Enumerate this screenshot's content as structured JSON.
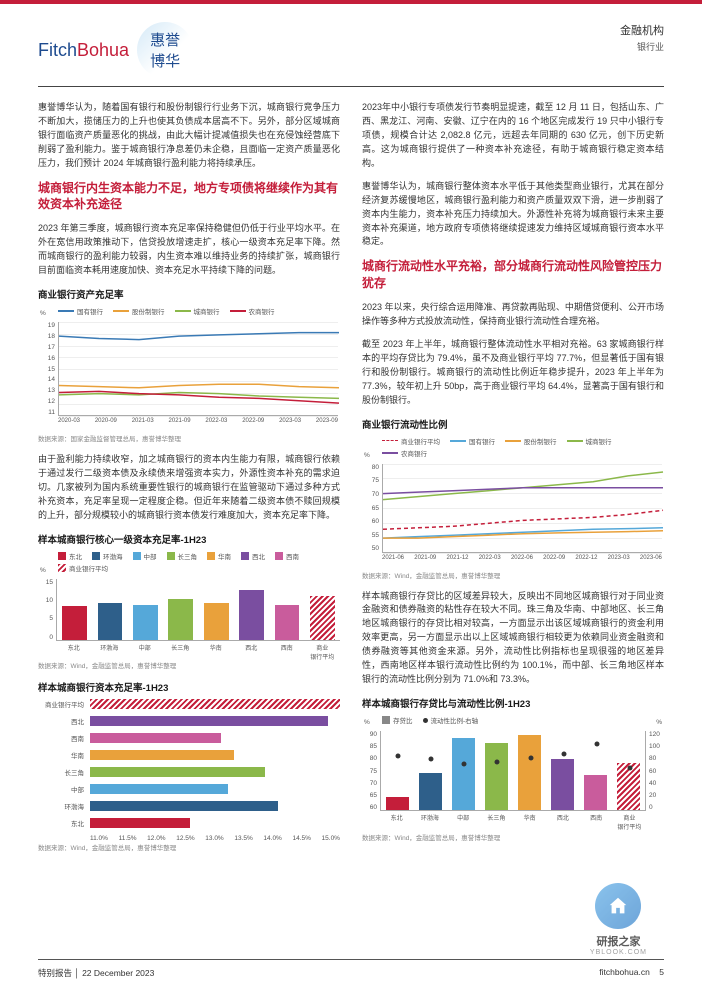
{
  "header": {
    "fitch_f": "Fitch",
    "fitch_b": "Bohua",
    "huiyu_top": "惠誉",
    "huiyu_bot": "博华",
    "right_top": "金融机构",
    "right_sub": "银行业"
  },
  "left": {
    "p1": "惠誉博华认为，随着国有银行和股份制银行行业务下沉，城商银行竞争压力不断加大，揽储压力的上升也使其负债成本居高不下。另外，部分区域城商银行面临资产质量恶化的挑战，由此大幅计提减值损失也在充侵蚀经营底下削弱了盈利能力。鉴于城商银行净息差仍未企稳，且面临一定资产质量恶化压力，我们预计 2024 年城商银行盈利能力将持续承压。",
    "h2_1": "城商银行内生资本能力不足，地方专项债将继续作为其有效资本补充途径",
    "p2": "2023 年第三季度，城商银行资本充足率保持稳健但仍低于行业平均水平。在外在宽信用政策推动下，信贷投放增速走扩，核心一级资本充足率下降。然而城商银行的盈利能力较弱，内生资本难以维持业务的持续扩张，城商银行目前面临资本耗用速度加快、资本充足水平持续下降的问题。",
    "chart1": {
      "title": "商业银行资产充足率",
      "ylabel": "%",
      "ymin": 11,
      "ymax": 19,
      "ystep": 1,
      "x_ticks": [
        "2020-03",
        "2020-09",
        "2021-03",
        "2021-09",
        "2022-03",
        "2022-09",
        "2023-03",
        "2023-09"
      ],
      "series": [
        {
          "name": "国有银行",
          "color": "#3a7ab5",
          "dash": false,
          "y": [
            17.8,
            17.6,
            17.5,
            17.8,
            17.9,
            18.0,
            18.1,
            18.1
          ]
        },
        {
          "name": "股份制银行",
          "color": "#e9a13b",
          "dash": false,
          "y": [
            13.6,
            13.5,
            13.4,
            13.6,
            13.7,
            13.7,
            13.5,
            13.4
          ]
        },
        {
          "name": "城商银行",
          "color": "#8bb84a",
          "dash": false,
          "y": [
            12.8,
            12.9,
            12.8,
            13.0,
            12.9,
            12.7,
            12.6,
            12.5
          ]
        },
        {
          "name": "农商银行",
          "color": "#c41e3a",
          "dash": false,
          "y": [
            13.0,
            13.1,
            12.9,
            12.8,
            12.6,
            12.5,
            12.3,
            12.1
          ]
        }
      ],
      "source": "数据来源：国家金融监督管理总局，惠誉博华整理"
    },
    "p3": "由于盈利能力持续收窄，加之城商银行的资本内生能力有限，城商银行依赖于通过发行二级资本债及永续债来增强资本实力，外源性资本补充的需求迫切。几家被列为国内系统重要性银行的城商银行在监管驱动下通过多种方式补充资本，充足率呈现一定程度企稳。但近年来随着二级资本债不赎回规模的上升，部分规模较小的城商银行资本债发行难度加大，资本充足率下降。",
    "chart2": {
      "title": "样本城商银行核心一级资本充足率-1H23",
      "ylabel": "%",
      "ymin": 0,
      "ymax": 15,
      "ystep": 5,
      "categories": [
        "东北",
        "环渤海",
        "中部",
        "长三角",
        "华南",
        "西北",
        "西南",
        "商业银行平均"
      ],
      "colors": [
        "#c41e3a",
        "#2e5f8a",
        "#55a8d9",
        "#8bb84a",
        "#e9a13b",
        "#7a4ea0",
        "#c95c9c",
        "hatched"
      ],
      "values": [
        8.2,
        9.0,
        8.5,
        9.8,
        8.8,
        12.0,
        8.5,
        10.5
      ],
      "legend": [
        "东北",
        "环渤海",
        "中部",
        "长三角",
        "华南",
        "西北",
        "西南",
        "商业银行平均"
      ],
      "source": "数据来源：Wind，金融监管总局，惠誉博华整理"
    },
    "chart3": {
      "title": "样本城商银行资本充足率-1H23",
      "xmin": 11.0,
      "xmax": 15.0,
      "xstep": 0.5,
      "categories_rev": [
        "商业银行平均",
        "西北",
        "西南",
        "华南",
        "长三角",
        "中部",
        "环渤海",
        "东北"
      ],
      "colors_rev": [
        "hatched",
        "#7a4ea0",
        "#c95c9c",
        "#e9a13b",
        "#8bb84a",
        "#55a8d9",
        "#2e5f8a",
        "#c41e3a"
      ],
      "values_rev": [
        15.0,
        14.8,
        13.1,
        13.3,
        13.8,
        13.2,
        14.0,
        12.6
      ],
      "source": "数据来源：Wind，金融监管总局，惠誉博华整理"
    }
  },
  "right": {
    "p1": "2023年中小银行专项债发行节奏明显提速，截至 12 月 11 日，包括山东、广西、黑龙江、河南、安徽、辽宁在内的 16 个地区完成发行 19 只中小银行专项债，规模合计达 2,082.8 亿元，远超去年同期的 630 亿元，创下历史新高。这为城商银行提供了一种资本补充途径，有助于城商银行稳定资本结构。",
    "p2": "惠誉博华认为，城商银行整体资本水平低于其他类型商业银行，尤其在部分经济复苏缓慢地区，城商银行盈利能力和资产质量双双下滑，进一步削弱了资本内生能力，资本补充压力持续加大。外源性补充将为城商银行未来主要资本补充渠道，地方政府专项债将继续提速发力维持区域城商银行资本水平稳定。",
    "h2_1": "城商行流动性水平充裕，部分城商行流动性风险管控压力犹存",
    "p3": "2023 年以来，央行综合运用降准、再贷款再贴现、中期借贷便利、公开市场操作等多种方式投放流动性，保持商业银行流动性合理充裕。",
    "p4": "截至 2023 年上半年，城商银行整体流动性水平相对充裕。63 家城商银行样本的平均存贷比为 79.4%，虽不及商业银行平均 77.7%，但显著低于国有银行和股份制银行。城商银行的流动性比例近年稳步提升，2023 年上半年为 77.3%，较年初上升 50bp，高于商业银行平均 64.4%，显著高于国有银行和股份制银行。",
    "chart4": {
      "title": "商业银行流动性比例",
      "ylabel": "%",
      "ymin": 50,
      "ymax": 80,
      "ystep": 5,
      "x_ticks": [
        "2021-06",
        "2021-09",
        "2021-12",
        "2022-03",
        "2022-06",
        "2022-09",
        "2022-12",
        "2023-03",
        "2023-06"
      ],
      "series": [
        {
          "name": "商业银行平均",
          "color": "#c41e3a",
          "dash": true,
          "y": [
            58,
            58.5,
            59,
            60,
            61,
            61.5,
            62,
            63,
            64.4
          ]
        },
        {
          "name": "国有银行",
          "color": "#55a8d9",
          "dash": false,
          "y": [
            55,
            55.5,
            56,
            56.5,
            57,
            57.5,
            58,
            58.2,
            58.5
          ]
        },
        {
          "name": "股份制银行",
          "color": "#e9a13b",
          "dash": false,
          "y": [
            55,
            55,
            55.5,
            56,
            56.5,
            56.8,
            57,
            57.2,
            57.5
          ]
        },
        {
          "name": "城商银行",
          "color": "#8bb84a",
          "dash": false,
          "y": [
            68,
            69,
            70,
            71,
            72,
            73,
            74,
            76,
            77.3
          ]
        },
        {
          "name": "农商银行",
          "color": "#7a4ea0",
          "dash": false,
          "y": [
            70,
            70.5,
            71,
            71.5,
            72,
            72,
            72,
            72,
            72
          ]
        }
      ],
      "source": "数据来源：Wind，金融监管总局，惠誉博华整理"
    },
    "p5": "样本城商银行存贷比的区域差异较大，反映出不同地区城商银行对于同业资金融资和债券融资的粘性存在较大不同。珠三角及华南、中部地区、长三角地区城商银行的存贷比相对较高，一方面显示出该区域城商银行的资金利用效率更高，另一方面显示出以上区域城商银行相较更为依赖同业资金融资和债券融资等其他资金来源。另外，流动性比例指标也呈现很强的地区差异性，西南地区样本银行流动性比例约为 100.1%，而中部、长三角地区样本银行的流动性比例分别为 71.0%和 73.3%。",
    "chart5": {
      "title": "样本城商银行存贷比与流动性比例-1H23",
      "legend_bar": "存贷比",
      "legend_line": "流动性比例-右轴",
      "yL_min": 60,
      "yL_max": 90,
      "yL_step": 5,
      "yR_min": 0,
      "yR_max": 120,
      "yR_step": 20,
      "categories": [
        "东北",
        "环渤海",
        "中部",
        "长三角",
        "华南",
        "西北",
        "西南",
        "商业银行平均"
      ],
      "bar_colors": [
        "#c41e3a",
        "#2e5f8a",
        "#55a8d9",
        "#8bb84a",
        "#e9a13b",
        "#7a4ea0",
        "#c95c9c",
        "hatched"
      ],
      "bar_values": [
        65,
        74,
        87,
        85,
        88,
        79,
        73,
        77.7
      ],
      "line_values": [
        82,
        78,
        71,
        73.3,
        79,
        85,
        100.1,
        64.4
      ],
      "source": "数据来源：Wind，金融监管总局，惠誉博华整理"
    }
  },
  "footer": {
    "left_a": "特别报告",
    "left_b": "22 December 2023",
    "right_url": "fitchbohua.cn",
    "page": "5"
  },
  "wm": {
    "name": "研报之家",
    "url": "YBLOOK.COM"
  }
}
